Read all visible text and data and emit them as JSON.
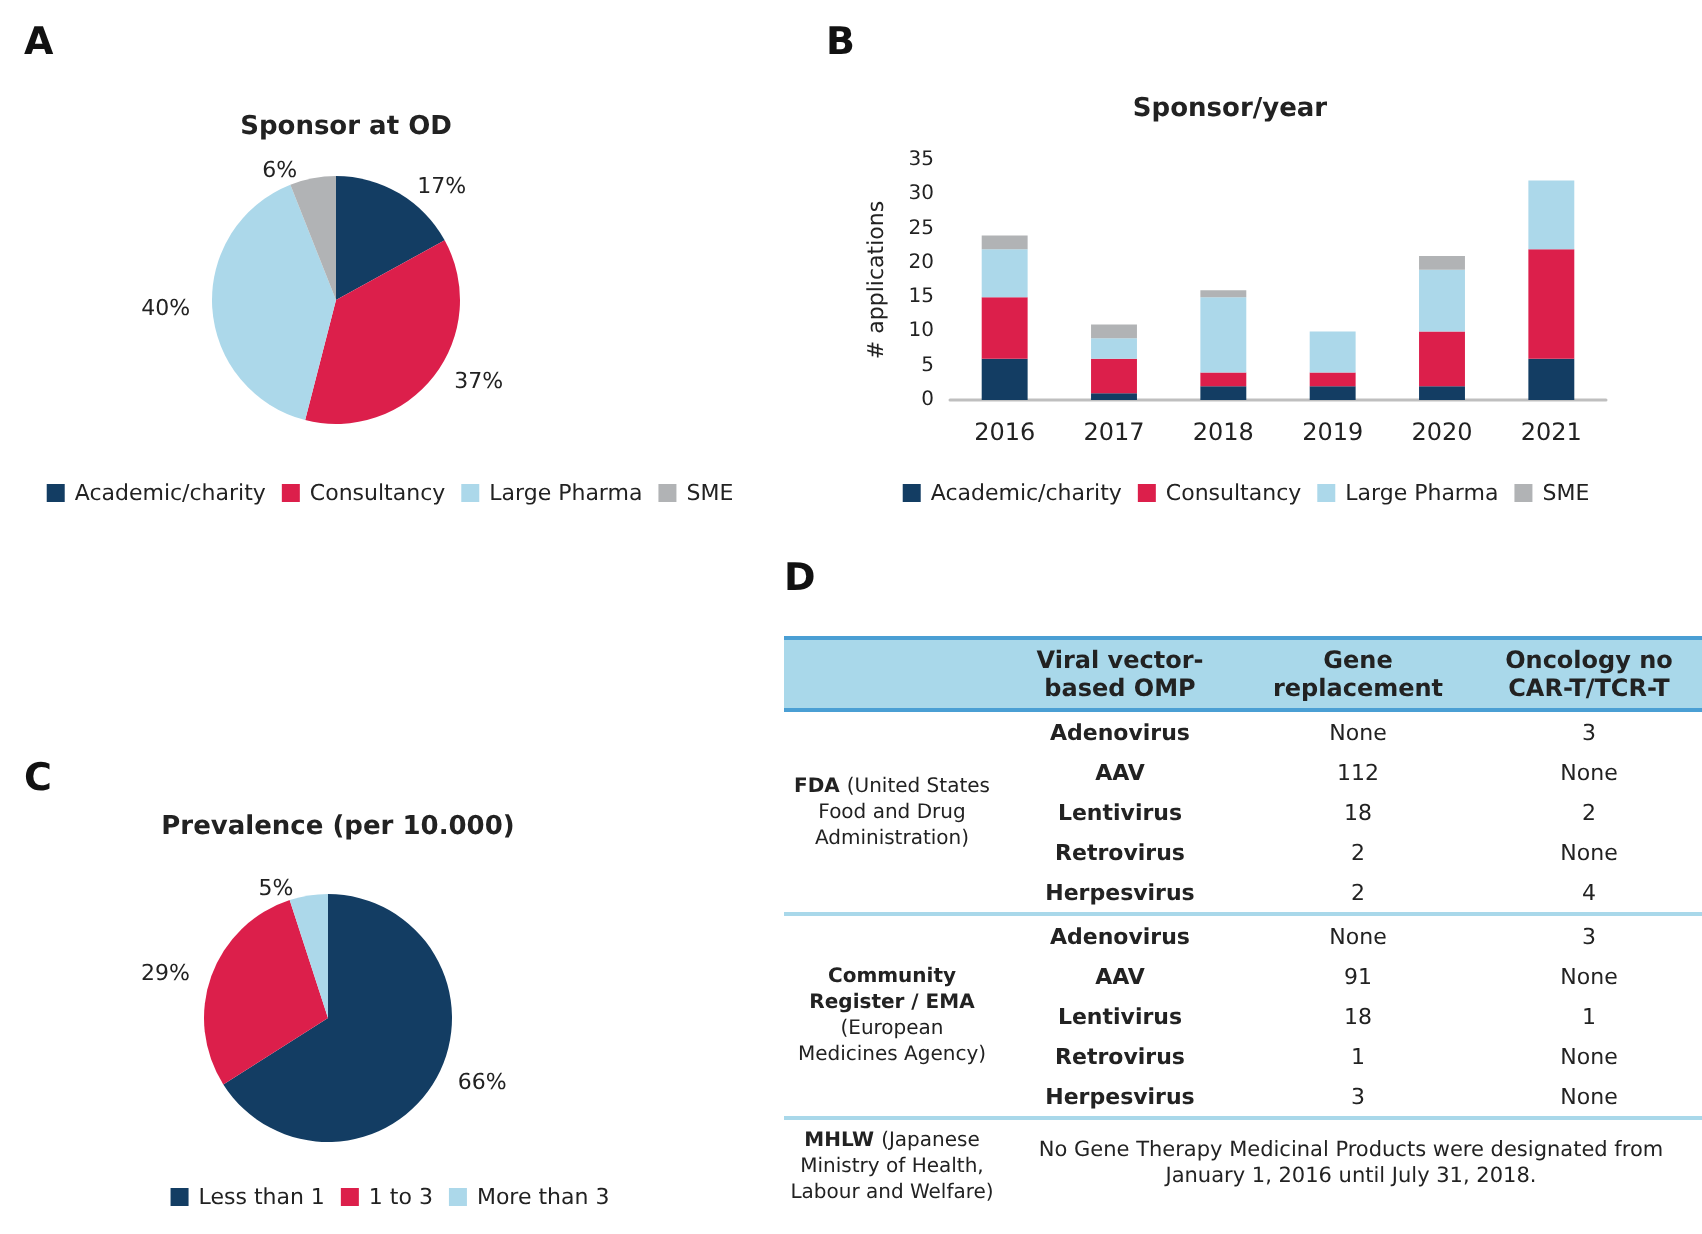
{
  "chart_data": [
    {
      "type": "pie",
      "title": "Sponsor at OD",
      "categories": [
        "Academic/charity",
        "Consultancy",
        "Large Pharma",
        "SME"
      ],
      "values": [
        17,
        37,
        40,
        6
      ],
      "value_labels": [
        "17%",
        "37%",
        "40%",
        "6%"
      ],
      "colors": [
        "#133d63",
        "#dc1f4b",
        "#acd8ea",
        "#b1b3b5"
      ],
      "legend": "bottom",
      "annotations": [
        "A"
      ]
    },
    {
      "type": "bar",
      "title": "Sponsor/year",
      "ylabel": "# applications",
      "stacked": true,
      "categories": [
        "2016",
        "2017",
        "2018",
        "2019",
        "2020",
        "2021"
      ],
      "series": [
        {
          "name": "Academic/charity",
          "color": "#133d63",
          "values": [
            6,
            1,
            2,
            2,
            2,
            6
          ]
        },
        {
          "name": "Consultancy",
          "color": "#dc1f4b",
          "values": [
            9,
            5,
            2,
            2,
            8,
            16
          ]
        },
        {
          "name": "Large Pharma",
          "color": "#acd8ea",
          "values": [
            7,
            3,
            11,
            6,
            9,
            10
          ]
        },
        {
          "name": "SME",
          "color": "#b1b3b5",
          "values": [
            2,
            2,
            1,
            0,
            2,
            0
          ]
        }
      ],
      "ylim": [
        0,
        35
      ],
      "yticks": [
        0,
        5,
        10,
        15,
        20,
        25,
        30,
        35
      ],
      "grid": false,
      "legend": "bottom",
      "annotations": [
        "B"
      ]
    },
    {
      "type": "pie",
      "title": "Prevalence (per 10.000)",
      "categories": [
        "Less than 1",
        "1 to 3",
        "More than 3"
      ],
      "values": [
        66,
        29,
        5
      ],
      "value_labels": [
        "66%",
        "29%",
        "5%"
      ],
      "colors": [
        "#133d63",
        "#dc1f4b",
        "#acd8ea"
      ],
      "legend": "bottom",
      "annotations": [
        "C"
      ]
    },
    {
      "type": "other",
      "ylabel": "Viral vector-based OMP",
      "categories": [
        "Gene replacement",
        "Oncology no CAR-T/TCR-T"
      ],
      "y_categories": [
        "Adenovirus",
        "AAV",
        "Lentivirus",
        "Retrovirus",
        "Herpesvirus",
        "Adenovirus",
        "AAV",
        "Lentivirus",
        "Retrovirus",
        "Herpesvirus"
      ],
      "cell_labels": [
        [
          "None",
          "3"
        ],
        [
          "112",
          "None"
        ],
        [
          "18",
          "2"
        ],
        [
          "2",
          "None"
        ],
        [
          "2",
          "4"
        ],
        [
          "None",
          "3"
        ],
        [
          "91",
          "None"
        ],
        [
          "18",
          "1"
        ],
        [
          "1",
          "None"
        ],
        [
          "3",
          "None"
        ]
      ],
      "annotations": [
        "D",
        "FDA (United  States Food and Drug Administration)",
        "Community Register / EMA (European Medicines Agency)",
        "MHLW (Japanese Ministry of Health, Labour and Welfare)",
        "No Gene Therapy Medicinal Products were designated from January 1, 2016 until July 31, 2018."
      ]
    }
  ]
}
